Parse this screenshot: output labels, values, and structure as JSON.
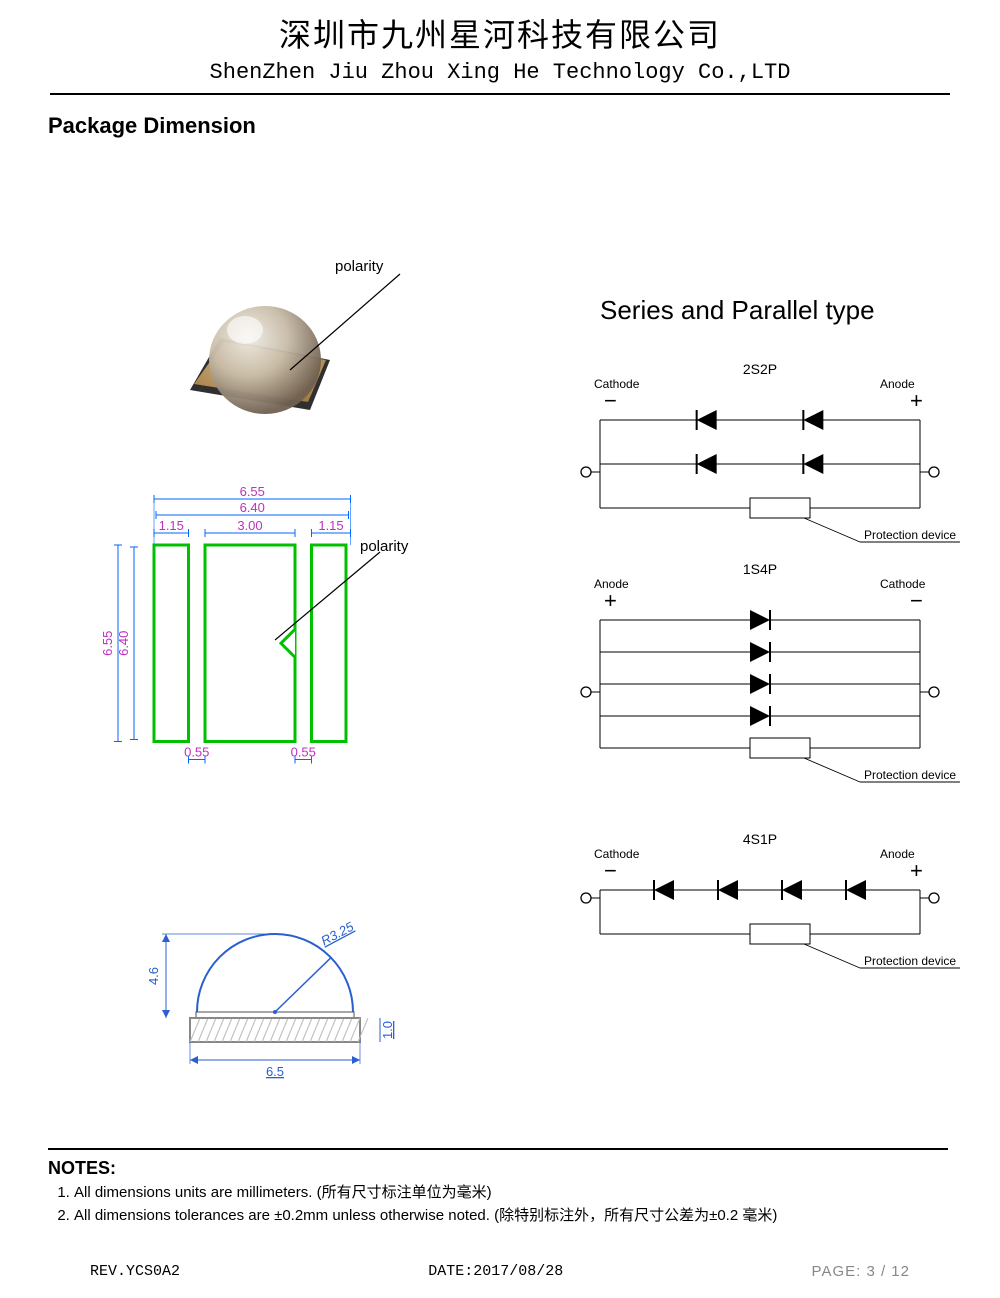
{
  "header": {
    "company_cn": "深圳市九州星河科技有限公司",
    "company_en": "ShenZhen Jiu Zhou Xing He Technology Co.,LTD"
  },
  "section_title": "Package Dimension",
  "series_title": "Series and Parallel type",
  "polarity_label": "polarity",
  "polarity_label_2": "polarity",
  "footprint": {
    "outer_w": "6.55",
    "inner_w": "6.40",
    "pad_w": "1.15",
    "center_w": "3.00",
    "pad_w2": "1.15",
    "outer_h": "6.55",
    "inner_h": "6.40",
    "gap_l": "0.55",
    "gap_r": "0.55",
    "outline_color": "#00c000",
    "dim_color": "#c030c0",
    "dim_line_color": "#0066ff"
  },
  "profile": {
    "radius": "R3.25",
    "height": "4.6",
    "base_w": "6.5",
    "base_h": "1.0",
    "line_color": "#2a5fd0",
    "hatch_color": "#888888"
  },
  "circuits": [
    {
      "title": "2S2P",
      "left_label": "Cathode",
      "right_label": "Anode",
      "left_sign": "−",
      "right_sign": "+",
      "protection": "Protection device",
      "rows": 2,
      "per_row": 2,
      "dir": "left"
    },
    {
      "title": "1S4P",
      "left_label": "Anode",
      "right_label": "Cathode",
      "left_sign": "+",
      "right_sign": "−",
      "protection": "Protection device",
      "rows": 4,
      "per_row": 1,
      "dir": "right"
    },
    {
      "title": "4S1P",
      "left_label": "Cathode",
      "right_label": "Anode",
      "left_sign": "−",
      "right_sign": "+",
      "protection": "Protection device",
      "rows": 1,
      "per_row": 4,
      "dir": "left"
    }
  ],
  "notes": {
    "title": "NOTES:",
    "items": [
      "All dimensions units are millimeters. (所有尺寸标注单位为毫米)",
      "All dimensions tolerances are ±0.2mm unless otherwise noted. (除特别标注外，所有尺寸公差为±0.2 毫米)"
    ]
  },
  "footer": {
    "rev": "REV.YCS0A2",
    "date": "DATE:2017/08/28",
    "page": "PAGE: 3 / 12"
  },
  "colors": {
    "black": "#000000",
    "led_base": "#3a3a3a",
    "led_gold": "#b89050",
    "led_highlight": "#e8e0d0"
  }
}
